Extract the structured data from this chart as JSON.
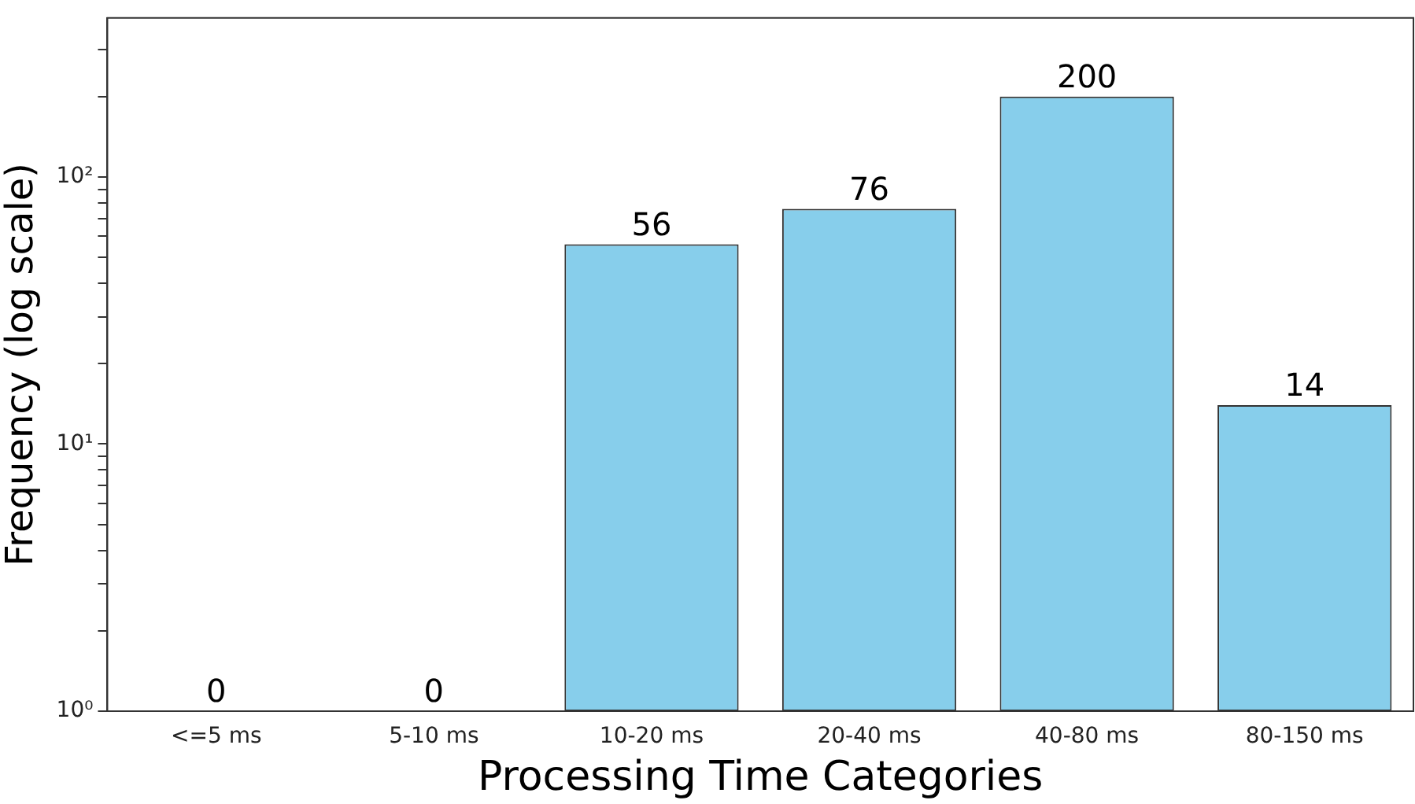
{
  "chart_data": {
    "type": "bar",
    "xlabel": "Processing Time Categories",
    "ylabel": "Frequency (log scale)",
    "categories": [
      "<=5 ms",
      "5-10 ms",
      "10-20 ms",
      "20-40 ms",
      "40-80 ms",
      "80-150 ms"
    ],
    "values": [
      null,
      null,
      56,
      76,
      200,
      14
    ],
    "value_labels": [
      "0",
      "0",
      "56",
      "76",
      "200",
      "14"
    ],
    "color": "#87ceeb",
    "log": true,
    "ylim": [
      1,
      394
    ],
    "yticks": [
      {
        "value": 1,
        "label": "10⁰"
      },
      {
        "value": 2,
        "label": null
      },
      {
        "value": 3,
        "label": null
      },
      {
        "value": 4,
        "label": null
      },
      {
        "value": 5,
        "label": null
      },
      {
        "value": 6,
        "label": null
      },
      {
        "value": 7,
        "label": null
      },
      {
        "value": 8,
        "label": null
      },
      {
        "value": 9,
        "label": null
      },
      {
        "value": 10,
        "label": "10¹"
      },
      {
        "value": 20,
        "label": null
      },
      {
        "value": 30,
        "label": null
      },
      {
        "value": 40,
        "label": null
      },
      {
        "value": 50,
        "label": null
      },
      {
        "value": 60,
        "label": null
      },
      {
        "value": 70,
        "label": null
      },
      {
        "value": 80,
        "label": null
      },
      {
        "value": 90,
        "label": null
      },
      {
        "value": 100,
        "label": "10²"
      },
      {
        "value": 200,
        "label": null
      },
      {
        "value": 300,
        "label": null
      }
    ],
    "grid": false,
    "legend": false
  }
}
